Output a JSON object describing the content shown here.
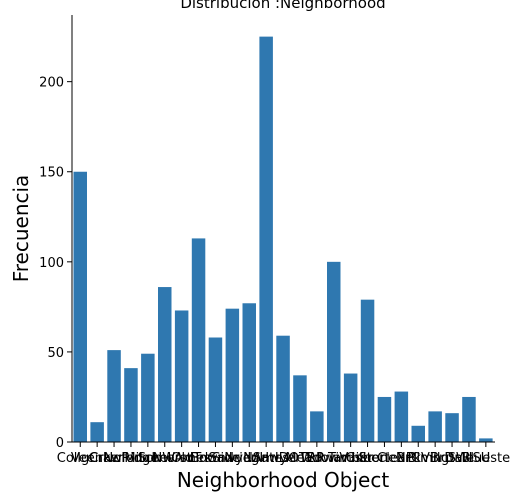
{
  "chart_data": {
    "type": "bar",
    "title": "Distribución :Neighborhood",
    "xlabel": "Neighborhood Object",
    "ylabel": "Frecuencia",
    "ylim": [
      0,
      237
    ],
    "yticks": [
      0,
      50,
      100,
      150,
      200
    ],
    "grid": false,
    "color": "#2f78b0",
    "categories": [
      "CollgCr",
      "Veenker",
      "Crawfor",
      "NoRidge",
      "Mitchel",
      "Somerst",
      "NWAmes",
      "OldTown",
      "BrkSide",
      "Sawyer",
      "NridgHt",
      "NAmes",
      "SawyerW",
      "IDOTRR",
      "MeadowV",
      "Edwards",
      "Timber",
      "Gilbert",
      "StoneBr",
      "ClearCr",
      "NPkVill",
      "Blmngtn",
      "BrDale",
      "SWISU",
      "Blueste"
    ],
    "values": [
      150,
      11,
      51,
      41,
      49,
      86,
      73,
      113,
      58,
      74,
      77,
      225,
      59,
      37,
      17,
      100,
      38,
      79,
      25,
      28,
      9,
      17,
      16,
      25,
      2
    ]
  }
}
